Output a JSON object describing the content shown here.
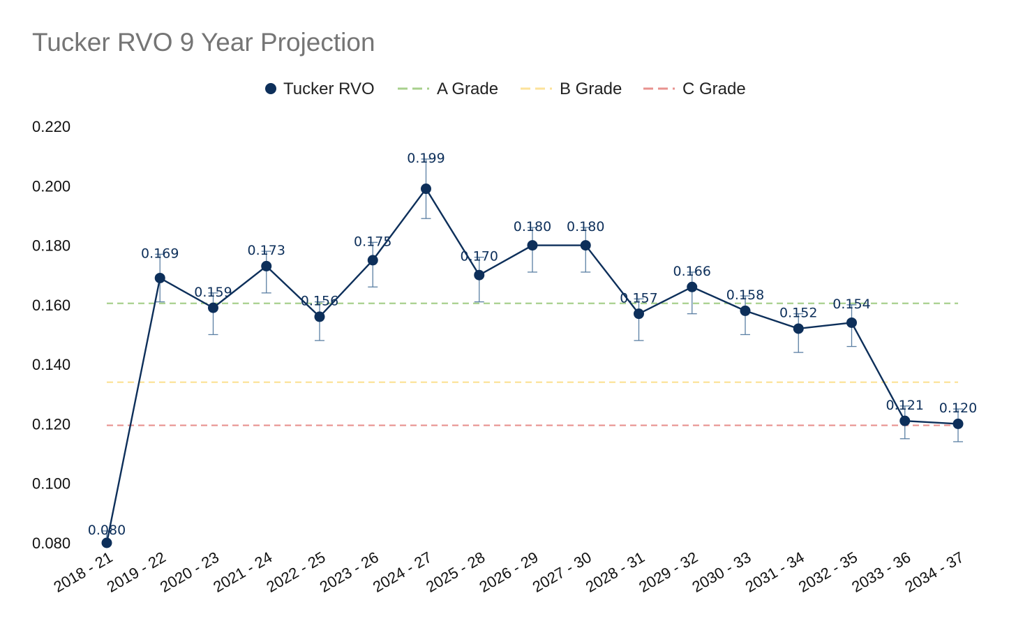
{
  "chart_data": {
    "type": "line",
    "title": "Tucker RVO 9 Year Projection",
    "xlabel": "",
    "ylabel": "",
    "ylim": [
      0.08,
      0.22
    ],
    "yticks": [
      "0.080",
      "0.100",
      "0.120",
      "0.140",
      "0.160",
      "0.180",
      "0.200",
      "0.220"
    ],
    "grid": false,
    "legend_position": "top-center",
    "categories": [
      "2018 - 21",
      "2019 - 22",
      "2020 - 23",
      "2021 - 24",
      "2022 - 25",
      "2023 - 26",
      "2024 - 27",
      "2025 - 28",
      "2026 - 29",
      "2027 - 30",
      "2028 - 31",
      "2029 -  32",
      "2030 - 33",
      "2031 - 34",
      "2032 - 35",
      "2033 - 36",
      "2034 - 37"
    ],
    "series": [
      {
        "name": "Tucker RVO",
        "color": "#0d2f5a",
        "values": [
          0.08,
          0.169,
          0.159,
          0.173,
          0.156,
          0.175,
          0.199,
          0.17,
          0.18,
          0.18,
          0.157,
          0.166,
          0.158,
          0.152,
          0.154,
          0.121,
          0.12
        ],
        "labels": [
          "0.080",
          "0.169",
          "0.159",
          "0.173",
          "0.156",
          "0.175",
          "0.199",
          "0.170",
          "0.180",
          "0.180",
          "0.157",
          "0.166",
          "0.158",
          "0.152",
          "0.154",
          "0.121",
          "0.120"
        ],
        "error_low": [
          0.08,
          0.161,
          0.15,
          0.164,
          0.148,
          0.166,
          0.189,
          0.161,
          0.171,
          0.171,
          0.148,
          0.157,
          0.15,
          0.144,
          0.146,
          0.115,
          0.114
        ],
        "error_high": [
          0.084,
          0.177,
          0.164,
          0.178,
          0.161,
          0.181,
          0.209,
          0.176,
          0.186,
          0.186,
          0.162,
          0.171,
          0.163,
          0.157,
          0.16,
          0.126,
          0.125
        ]
      }
    ],
    "reference_lines": [
      {
        "name": "A Grade",
        "value": 0.1605,
        "color": "#a8d08d"
      },
      {
        "name": "B Grade",
        "value": 0.134,
        "color": "#fce29a"
      },
      {
        "name": "C Grade",
        "value": 0.1195,
        "color": "#e8928f"
      }
    ]
  }
}
